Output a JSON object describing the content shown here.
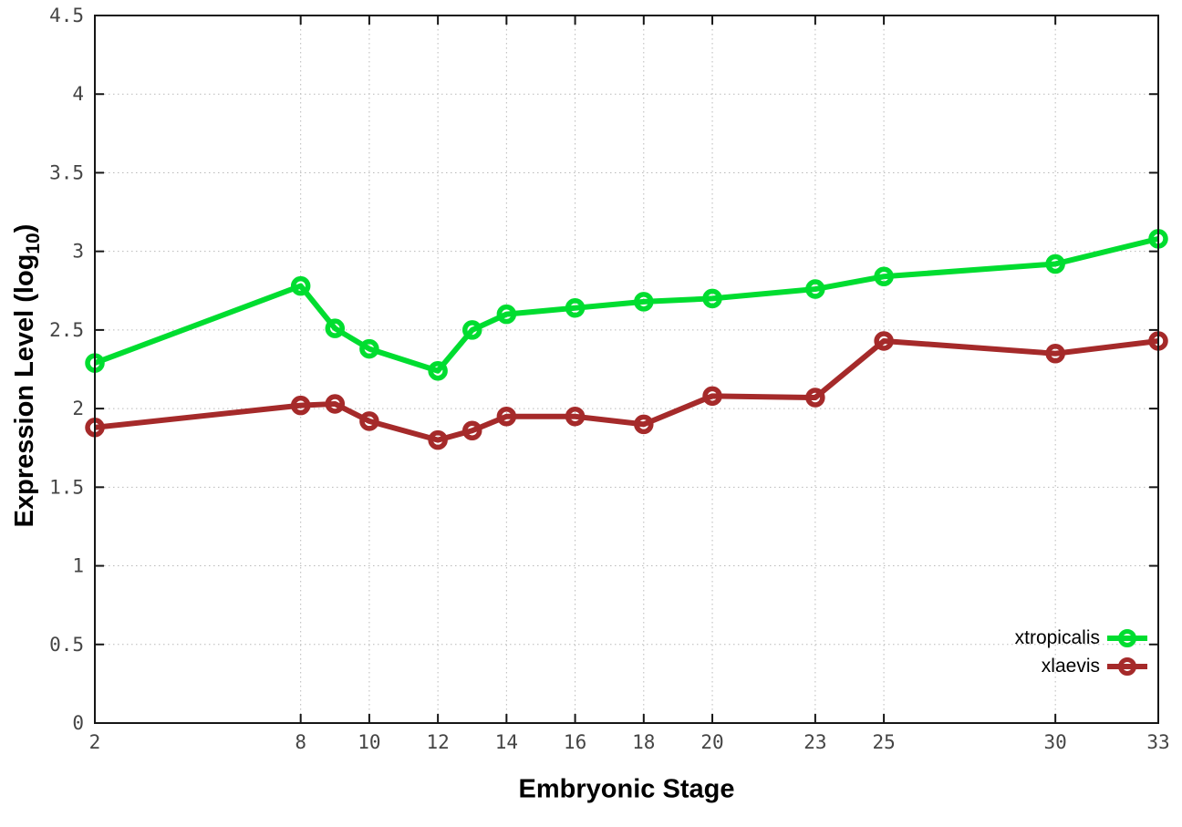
{
  "page": {
    "background": "#ffffff"
  },
  "chart_data": {
    "type": "line",
    "title": "",
    "xlabel": "Embryonic Stage",
    "ylabel": "Expression Level (log10)",
    "ylabel_parts": {
      "prefix": "Expression Level (log",
      "sub": "10",
      "suffix": ")"
    },
    "x": [
      2,
      8,
      9,
      10,
      12,
      13,
      14,
      16,
      18,
      20,
      23,
      25,
      30,
      33
    ],
    "xlim": [
      2,
      33
    ],
    "ylim": [
      0,
      4.5
    ],
    "xticks": [
      2,
      8,
      10,
      12,
      14,
      16,
      18,
      20,
      23,
      25,
      30,
      33
    ],
    "yticks": [
      0,
      0.5,
      1,
      1.5,
      2,
      2.5,
      3,
      3.5,
      4,
      4.5
    ],
    "xtick_labels": [
      "2",
      "8",
      "10",
      "12",
      "14",
      "16",
      "18",
      "20",
      "23",
      "25",
      "30",
      "33"
    ],
    "ytick_labels": [
      "0",
      "0.5",
      "1",
      "1.5",
      "2",
      "2.5",
      "3",
      "3.5",
      "4",
      "4.5"
    ],
    "grid": "dotted",
    "legend_position": "inside-bottom-right",
    "marker": "open-circle",
    "series": [
      {
        "name": "xtropicalis",
        "color": "#00dd30",
        "values": [
          2.29,
          2.78,
          2.51,
          2.38,
          2.24,
          2.5,
          2.6,
          2.64,
          2.68,
          2.7,
          2.76,
          2.84,
          2.92,
          3.08
        ]
      },
      {
        "name": "xlaevis",
        "color": "#a52a2a",
        "values": [
          1.88,
          2.02,
          2.03,
          1.92,
          1.8,
          1.86,
          1.95,
          1.95,
          1.9,
          2.08,
          2.07,
          2.43,
          2.35,
          2.43
        ]
      }
    ]
  }
}
